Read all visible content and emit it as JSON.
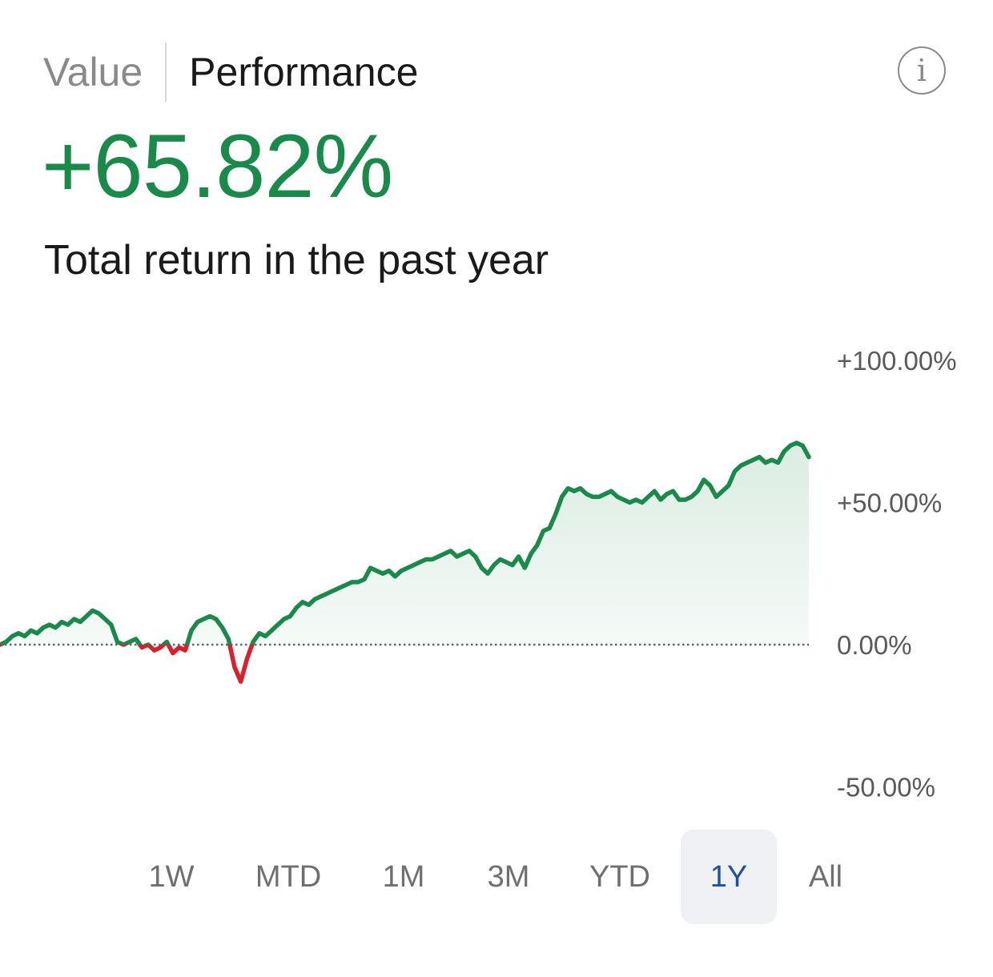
{
  "tabs": {
    "value_label": "Value",
    "performance_label": "Performance"
  },
  "info_icon": "info-icon",
  "headline": {
    "value": "+65.82%",
    "color": "#1a8a4a"
  },
  "subtitle": "Total return in the past year",
  "periods": {
    "selected": "1Y",
    "items": [
      "1W",
      "MTD",
      "1M",
      "3M",
      "YTD",
      "1Y",
      "All"
    ]
  },
  "colors": {
    "positive": "#1a8a4a",
    "negative": "#d8202f",
    "selected_period_bg": "#eef0f4",
    "selected_period_text": "#1f4fa0"
  },
  "chart_data": {
    "type": "area",
    "ylim": [
      -60,
      100
    ],
    "yticks": [
      100,
      50,
      0,
      -50
    ],
    "ytick_labels": [
      "+100.00%",
      "+50.00%",
      "0.00%",
      "-50.00%"
    ],
    "baseline": 0,
    "baseline_style": "dotted",
    "grid": false,
    "legend": "none",
    "series": [
      {
        "values": [
          0,
          1,
          3,
          4,
          3,
          5,
          4,
          6,
          7,
          6,
          8,
          7,
          9,
          8,
          10,
          12,
          11,
          9,
          7,
          1,
          0,
          1,
          2,
          -1,
          0,
          -2,
          -1,
          1,
          -3,
          -1,
          -2,
          5,
          8,
          9,
          10,
          9,
          6,
          2,
          -8,
          -13,
          -5,
          1,
          4,
          3,
          5,
          7,
          9,
          10,
          13,
          15,
          14,
          16,
          17,
          18,
          19,
          20,
          21,
          22,
          22,
          23,
          27,
          26,
          25,
          26,
          24,
          26,
          27,
          28,
          29,
          30,
          30,
          31,
          32,
          33,
          31,
          32,
          33,
          31,
          27,
          25,
          28,
          30,
          29,
          28,
          31,
          27,
          32,
          35,
          40,
          41,
          46,
          52,
          55,
          54,
          55,
          53,
          52,
          52,
          53,
          54,
          52,
          51,
          50,
          51,
          50,
          52,
          54,
          51,
          53,
          54,
          51,
          51,
          52,
          54,
          58,
          56,
          52,
          54,
          56,
          61,
          63,
          64,
          65,
          66,
          64,
          65,
          64,
          68,
          70,
          71,
          70,
          66
        ]
      }
    ]
  }
}
